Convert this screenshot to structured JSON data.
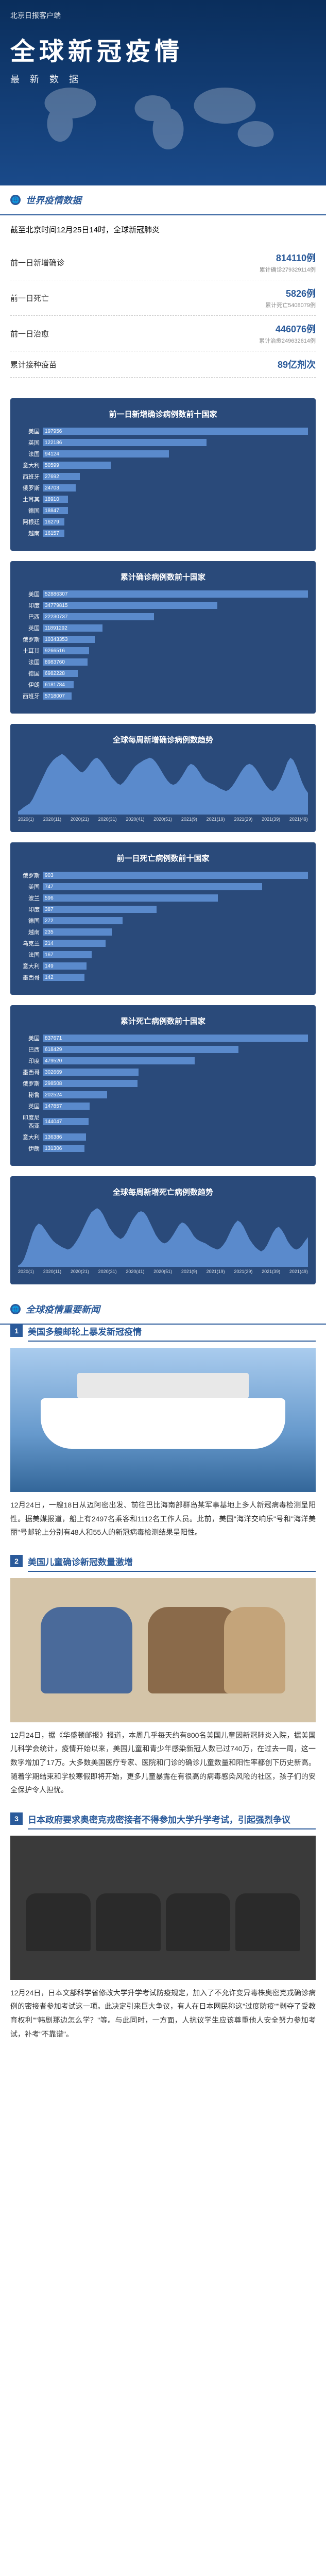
{
  "header": {
    "source": "北京日报客户端",
    "title": "全球新冠疫情",
    "subtitle": "最新数据",
    "epidemic_label": "PIDEMI"
  },
  "section1": {
    "title": "世界疫情数据",
    "intro": "截至北京时间12月25日14时，全球新冠肺炎",
    "stats": [
      {
        "label": "前一日新增确诊",
        "num": "814110例",
        "note": "累计确诊279329114例"
      },
      {
        "label": "前一日死亡",
        "num": "5826例",
        "note": "累计死亡5408079例"
      },
      {
        "label": "前一日治愈",
        "num": "446076例",
        "note": "累计治愈249632614例"
      },
      {
        "label": "累计接种疫苗",
        "num": "89亿剂次",
        "note": ""
      }
    ]
  },
  "chart1": {
    "title": "前一日新增确诊病例数前十国家",
    "max": 197956,
    "rows": [
      {
        "label": "美国",
        "val": 197956
      },
      {
        "label": "英国",
        "val": 122186
      },
      {
        "label": "法国",
        "val": 94124
      },
      {
        "label": "意大利",
        "val": 50599
      },
      {
        "label": "西班牙",
        "val": 27692
      },
      {
        "label": "俄罗斯",
        "val": 24703
      },
      {
        "label": "土耳其",
        "val": 18910
      },
      {
        "label": "德国",
        "val": 18847
      },
      {
        "label": "阿根廷",
        "val": 16279
      },
      {
        "label": "越南",
        "val": 16157
      }
    ]
  },
  "chart2": {
    "title": "累计确诊病例数前十国家",
    "max": 52886307,
    "rows": [
      {
        "label": "美国",
        "val": 52886307
      },
      {
        "label": "印度",
        "val": 34779815
      },
      {
        "label": "巴西",
        "val": 22230737
      },
      {
        "label": "英国",
        "val": 11891292
      },
      {
        "label": "俄罗斯",
        "val": 10343353
      },
      {
        "label": "土耳其",
        "val": 9266516
      },
      {
        "label": "法国",
        "val": 8983760
      },
      {
        "label": "德国",
        "val": 6982228
      },
      {
        "label": "伊朗",
        "val": 6181784
      },
      {
        "label": "西班牙",
        "val": 5718007
      }
    ]
  },
  "chart3": {
    "title": "全球每周新增确诊病例数趋势",
    "ymax": "2M",
    "points": [
      5,
      8,
      12,
      15,
      18,
      25,
      35,
      45,
      55,
      65,
      75,
      82,
      88,
      92,
      95,
      98,
      95,
      90,
      85,
      80,
      75,
      70,
      68,
      72,
      78,
      85,
      90,
      92,
      88,
      82,
      75,
      68,
      60,
      55,
      50,
      48,
      52,
      58,
      65,
      72,
      78,
      82,
      85,
      88,
      90,
      92,
      90,
      85,
      78,
      70,
      62,
      55,
      50,
      48,
      50,
      55,
      62,
      70,
      78,
      82,
      80,
      75,
      68,
      60,
      55,
      52,
      50,
      48,
      45,
      42,
      40,
      38,
      40,
      45,
      52,
      60,
      68,
      75,
      80,
      82,
      80,
      75,
      68,
      60,
      52,
      45,
      40,
      38,
      42,
      50,
      60,
      72,
      85,
      92,
      88,
      78,
      65,
      52,
      42,
      35
    ],
    "axis": [
      "2020(1)",
      "2020(11)",
      "2020(21)",
      "2020(31)",
      "2020(41)",
      "2020(51)",
      "2021(9)",
      "2021(19)",
      "2021(29)",
      "2021(39)",
      "2021(49)"
    ]
  },
  "chart4": {
    "title": "前一日死亡病例数前十国家",
    "max": 903,
    "rows": [
      {
        "label": "俄罗斯",
        "val": 903
      },
      {
        "label": "美国",
        "val": 747
      },
      {
        "label": "波兰",
        "val": 596
      },
      {
        "label": "印度",
        "val": 387
      },
      {
        "label": "德国",
        "val": 272
      },
      {
        "label": "越南",
        "val": 235
      },
      {
        "label": "乌克兰",
        "val": 214
      },
      {
        "label": "法国",
        "val": 167
      },
      {
        "label": "意大利",
        "val": 149
      },
      {
        "label": "墨西哥",
        "val": 142
      }
    ]
  },
  "chart5": {
    "title": "累计死亡病例数前十国家",
    "max": 837671,
    "rows": [
      {
        "label": "美国",
        "val": 837671
      },
      {
        "label": "巴西",
        "val": 618429
      },
      {
        "label": "印度",
        "val": 479520
      },
      {
        "label": "墨西哥",
        "val": 302669
      },
      {
        "label": "俄罗斯",
        "val": 298508
      },
      {
        "label": "秘鲁",
        "val": 202524
      },
      {
        "label": "英国",
        "val": 147857
      },
      {
        "label": "印度尼西亚",
        "val": 144047
      },
      {
        "label": "意大利",
        "val": 136386
      },
      {
        "label": "伊朗",
        "val": 131306
      }
    ]
  },
  "chart6": {
    "title": "全球每周新增死亡病例数趋势",
    "ymax": "40K",
    "points": [
      2,
      5,
      12,
      25,
      40,
      55,
      65,
      70,
      68,
      62,
      55,
      48,
      42,
      38,
      35,
      32,
      30,
      28,
      30,
      35,
      42,
      50,
      60,
      70,
      80,
      88,
      92,
      95,
      92,
      85,
      75,
      65,
      58,
      52,
      48,
      45,
      48,
      55,
      65,
      75,
      82,
      88,
      90,
      88,
      82,
      72,
      62,
      52,
      45,
      40,
      38,
      40,
      45,
      52,
      60,
      68,
      72,
      70,
      65,
      58,
      50,
      45,
      42,
      40,
      38,
      35,
      32,
      30,
      28,
      30,
      35,
      42,
      52,
      62,
      70,
      75,
      72,
      65,
      55,
      45,
      38,
      32,
      28,
      25,
      28,
      35,
      45,
      55,
      62,
      65,
      60,
      52,
      42,
      35,
      30,
      28,
      30,
      35,
      42,
      48
    ],
    "axis": [
      "2020(1)",
      "2020(11)",
      "2020(21)",
      "2020(31)",
      "2020(41)",
      "2020(51)",
      "2021(9)",
      "2021(19)",
      "2021(29)",
      "2021(39)",
      "2021(49)"
    ]
  },
  "section2": {
    "title": "全球疫情重要新闻"
  },
  "news": [
    {
      "num": "1",
      "title": "美国多艘邮轮上暴发新冠疫情",
      "img": "ship",
      "text": "12月24日，一艘18日从迈阿密出发、前往巴比海南部群岛某军事基地上多人新冠病毒检测呈阳性。据美媒报道，船上有2497名乘客和1112名工作人员。此前，美国\"海洋交响乐\"号和\"海洋美丽\"号邮轮上分别有48人和55人的新冠病毒检测结果呈阳性。"
    },
    {
      "num": "2",
      "title": "美国儿童确诊新冠数量激增",
      "img": "doctor",
      "text": "12月24日，据《华盛顿邮报》报道，本周几乎每天约有800名美国儿童因新冠肺炎入院，据美国儿科学会统计，疫情开始以来，美国儿童和青少年感染新冠人数已过740万，在过去一周，这一数字增加了17万。大多数美国医疗专家、医院和门诊的确诊儿童数量和阳性率都创下历史新高。随着学期结束和学校寒假即将开始，更多儿童暴露在有很高的病毒感染风险的社区，孩子们的安全保护令人担忧。"
    },
    {
      "num": "3",
      "title": "日本政府要求奥密克戎密接者不得参加大学升学考试，引起强烈争议",
      "img": "japan",
      "text": "12月24日，日本文部科学省修改大学升学考试防疫规定，加入了不允许变异毒株奥密克戎确诊病例的密接者参加考试这一项。此决定引来巨大争议，有人在日本网民称这\"过度防疫\"\"剥夺了受教育权利\"\"韩剧那边怎么学？\"等。与此同时，一方面，人抗议学生应该尊重他人安全努力参加考试，补考\"不靠谱\"。"
    }
  ]
}
